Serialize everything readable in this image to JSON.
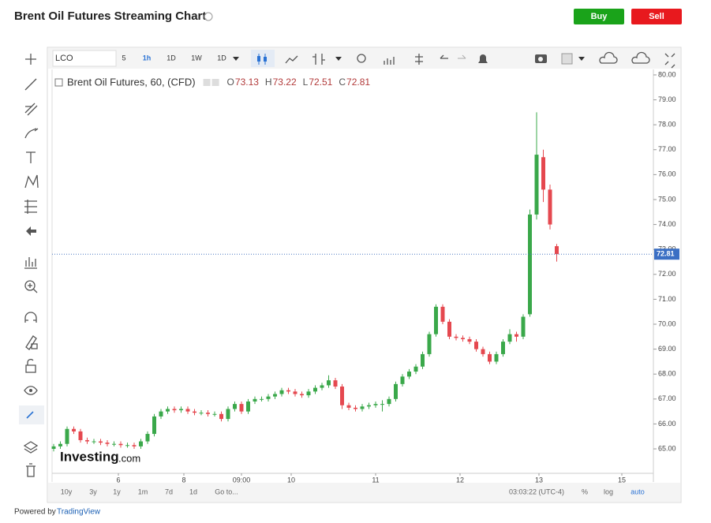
{
  "page": {
    "title": "Brent Oil Futures Streaming Chart",
    "buy": "Buy",
    "sell": "Sell",
    "toolbar": [
      "LCO",
      "5",
      "1h",
      "1D",
      "1W",
      "1D"
    ],
    "ohlc_letters": [
      "O",
      "H",
      "L",
      "C"
    ],
    "ranges": [
      "10y",
      "3y",
      "1y",
      "1m",
      "7d",
      "1d",
      "Go to..."
    ],
    "clock": "03:03:22 (UTC-4)",
    "scale_buttons": [
      "%",
      "log",
      "auto"
    ],
    "watermark": "Investing",
    "watermark_suffix": ".com",
    "footer": "Powered by",
    "footer_link": "TradingView"
  },
  "chart_data": {
    "type": "candlestick",
    "title": "Brent Oil Futures, 60, (CFD)",
    "up_color": "#3aa84a",
    "down_color": "#e5484f",
    "grid": false,
    "ylim": [
      64.02,
      80.22
    ],
    "yticks": [
      {
        "value": 65,
        "label": "65.00"
      },
      {
        "value": 66,
        "label": "66.00"
      },
      {
        "value": 67,
        "label": "67.00"
      },
      {
        "value": 68,
        "label": "68.00"
      },
      {
        "value": 69,
        "label": "69.00"
      },
      {
        "value": 70,
        "label": "70.00"
      },
      {
        "value": 71,
        "label": "71.00"
      },
      {
        "value": 72,
        "label": "72.00"
      },
      {
        "value": 73,
        "label": "73.00"
      },
      {
        "value": 74,
        "label": "74.00"
      },
      {
        "value": 75,
        "label": "75.00"
      },
      {
        "value": 76,
        "label": "76.00"
      },
      {
        "value": 77,
        "label": "77.00"
      },
      {
        "value": 78,
        "label": "78.00"
      },
      {
        "value": 79,
        "label": "79.00"
      },
      {
        "value": 80,
        "label": "80.00"
      }
    ],
    "xticks": [
      "6",
      "8",
      "09:00",
      "10",
      "11",
      "12",
      "13",
      "15"
    ],
    "open": [
      65.0,
      65.1,
      65.2,
      65.8,
      65.7,
      65.35,
      65.3,
      65.3,
      65.25,
      65.2,
      65.2,
      65.15,
      65.15,
      65.1,
      65.3,
      65.6,
      66.3,
      66.5,
      66.6,
      66.55,
      66.6,
      66.5,
      66.45,
      66.45,
      66.4,
      66.4,
      66.2,
      66.6,
      66.8,
      66.5,
      66.9,
      67.0,
      67.0,
      67.1,
      67.2,
      67.35,
      67.3,
      67.2,
      67.15,
      67.3,
      67.45,
      67.55,
      67.75,
      67.5,
      66.75,
      66.65,
      66.6,
      66.7,
      66.75,
      66.8,
      66.8,
      67.0,
      67.6,
      67.9,
      68.1,
      68.3,
      68.8,
      69.6,
      70.7,
      70.1,
      69.5,
      69.45,
      69.4,
      69.3,
      69.0,
      68.8,
      68.5,
      68.8,
      69.3,
      69.6,
      69.5,
      70.4,
      74.4,
      76.7,
      75.4,
      73.13
    ],
    "high": [
      65.2,
      65.3,
      65.9,
      65.9,
      65.8,
      65.45,
      65.4,
      65.4,
      65.35,
      65.3,
      65.3,
      65.25,
      65.25,
      65.4,
      65.7,
      66.4,
      66.6,
      66.7,
      66.7,
      66.7,
      66.7,
      66.6,
      66.55,
      66.55,
      66.5,
      66.5,
      66.7,
      66.9,
      66.9,
      67.0,
      67.1,
      67.1,
      67.2,
      67.3,
      67.45,
      67.45,
      67.4,
      67.3,
      67.4,
      67.55,
      67.65,
      67.95,
      67.85,
      67.6,
      66.85,
      66.75,
      66.8,
      66.85,
      66.9,
      66.95,
      67.1,
      67.7,
      68.0,
      68.2,
      68.4,
      68.9,
      69.7,
      70.8,
      70.8,
      70.2,
      69.6,
      69.55,
      69.5,
      69.4,
      69.1,
      68.9,
      68.9,
      69.4,
      69.8,
      69.7,
      70.4,
      74.6,
      78.5,
      77.0,
      75.6,
      73.22
    ],
    "low": [
      64.9,
      65.0,
      65.1,
      65.6,
      65.25,
      65.2,
      65.2,
      65.15,
      65.1,
      65.1,
      65.05,
      65.05,
      65.0,
      65.0,
      65.2,
      65.5,
      66.2,
      66.4,
      66.45,
      66.45,
      66.4,
      66.35,
      66.35,
      66.3,
      66.3,
      66.1,
      66.1,
      66.5,
      66.4,
      66.4,
      66.8,
      66.9,
      66.9,
      67.0,
      67.1,
      67.2,
      67.1,
      67.05,
      67.05,
      67.2,
      67.35,
      67.45,
      67.4,
      66.6,
      66.55,
      66.5,
      66.5,
      66.6,
      66.65,
      66.5,
      66.7,
      66.9,
      67.5,
      67.8,
      68.0,
      68.2,
      68.7,
      69.5,
      70.0,
      69.4,
      69.35,
      69.3,
      69.2,
      68.9,
      68.7,
      68.4,
      68.4,
      68.7,
      69.2,
      69.3,
      69.4,
      70.3,
      74.2,
      74.9,
      73.8,
      72.51
    ],
    "close": [
      65.1,
      65.2,
      65.8,
      65.7,
      65.35,
      65.3,
      65.3,
      65.25,
      65.2,
      65.2,
      65.15,
      65.15,
      65.1,
      65.3,
      65.6,
      66.3,
      66.5,
      66.6,
      66.55,
      66.6,
      66.5,
      66.45,
      66.45,
      66.4,
      66.4,
      66.2,
      66.6,
      66.8,
      66.5,
      66.9,
      67.0,
      67.0,
      67.1,
      67.2,
      67.35,
      67.3,
      67.2,
      67.15,
      67.3,
      67.45,
      67.55,
      67.75,
      67.5,
      66.75,
      66.65,
      66.6,
      66.7,
      66.75,
      66.8,
      66.8,
      67.0,
      67.6,
      67.9,
      68.1,
      68.3,
      68.8,
      69.6,
      70.7,
      70.1,
      69.5,
      69.45,
      69.4,
      69.3,
      69.0,
      68.8,
      68.5,
      68.8,
      69.3,
      69.6,
      69.5,
      70.3,
      74.4,
      76.8,
      75.4,
      74.0,
      72.81
    ]
  }
}
